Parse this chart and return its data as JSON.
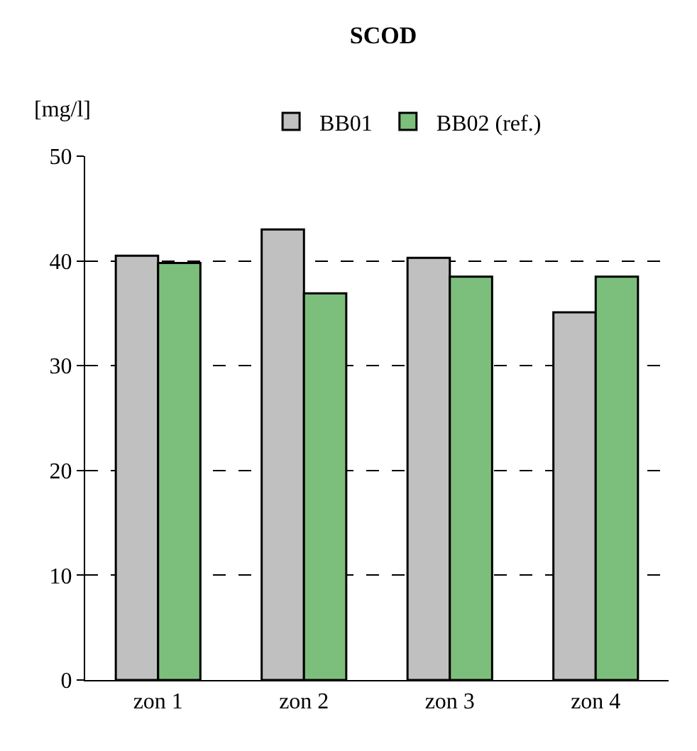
{
  "chart_data": {
    "type": "bar",
    "title": "SCOD",
    "ylabel": "[mg/l]",
    "categories": [
      "zon 1",
      "zon 2",
      "zon 3",
      "zon 4"
    ],
    "series": [
      {
        "name": "BB01",
        "color": "#c0c0c0",
        "values": [
          40.5,
          43,
          40.3,
          35.1
        ]
      },
      {
        "name": "BB02 (ref.)",
        "color": "#7cbf7c",
        "values": [
          39.8,
          36.9,
          38.5,
          38.5
        ]
      }
    ],
    "ylim": [
      0,
      50
    ],
    "yticks": [
      0,
      10,
      20,
      30,
      40,
      50
    ],
    "grid": "y",
    "legend": "top"
  }
}
